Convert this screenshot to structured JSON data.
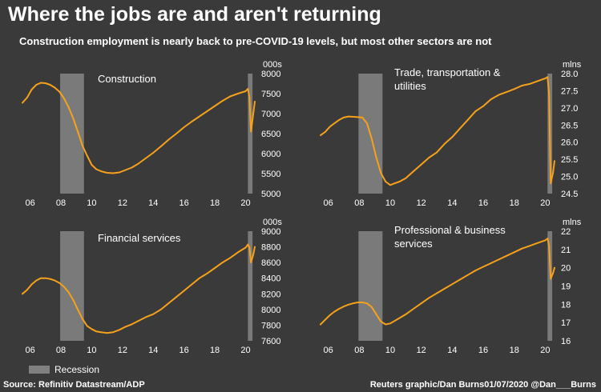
{
  "title": "Where the jobs are and aren't returning",
  "subtitle": "Construction employment is nearly back to pre-COVID-19 levels, but most other sectors are not",
  "legend_label": "Recession",
  "source": "Source: Refinitiv Datastream/ADP",
  "credit": "Reuters graphic/Dan Burns01/07/2020 @Dan___Burns",
  "colors": {
    "line": "#f5a11b",
    "recession": "#7a7a7a",
    "background": "#3a3a3a",
    "text": "#ffffff"
  },
  "chart_data": [
    {
      "type": "line",
      "title": "Construction",
      "unit_label": "000s",
      "xlim": [
        2005.5,
        2020.6
      ],
      "ylim": [
        5000,
        8000
      ],
      "x_ticks": [
        2006,
        2008,
        2010,
        2012,
        2014,
        2016,
        2018,
        2020
      ],
      "x_tick_labels": [
        "06",
        "08",
        "10",
        "12",
        "14",
        "16",
        "18",
        "20"
      ],
      "y_ticks": [
        5000,
        5500,
        6000,
        6500,
        7000,
        7500,
        8000
      ],
      "y_tick_labels": [
        "5000",
        "5500",
        "6000",
        "6500",
        "7000",
        "7500",
        "8000"
      ],
      "recession": [
        [
          2007.95,
          2009.5
        ],
        [
          2020.15,
          2020.45
        ]
      ],
      "x": [
        2005.5,
        2005.8,
        2006.1,
        2006.4,
        2006.7,
        2007.0,
        2007.3,
        2007.6,
        2007.9,
        2008.2,
        2008.5,
        2008.8,
        2009.1,
        2009.4,
        2009.7,
        2010.0,
        2010.3,
        2010.6,
        2011.0,
        2011.4,
        2011.8,
        2012.2,
        2012.6,
        2013.0,
        2013.5,
        2014.0,
        2014.5,
        2015.0,
        2015.5,
        2016.0,
        2016.5,
        2017.0,
        2017.5,
        2018.0,
        2018.5,
        2019.0,
        2019.5,
        2020.0,
        2020.15,
        2020.25,
        2020.35,
        2020.5,
        2020.6
      ],
      "y": [
        7270,
        7400,
        7600,
        7720,
        7770,
        7760,
        7720,
        7650,
        7550,
        7380,
        7160,
        6880,
        6550,
        6200,
        5950,
        5720,
        5610,
        5560,
        5520,
        5510,
        5530,
        5590,
        5650,
        5740,
        5880,
        6020,
        6180,
        6350,
        6500,
        6660,
        6800,
        6930,
        7060,
        7190,
        7320,
        7430,
        7500,
        7560,
        7620,
        7400,
        6550,
        7000,
        7300
      ]
    },
    {
      "type": "line",
      "title": "Trade, transportation & utilities",
      "unit_label": "mlns",
      "xlim": [
        2005.5,
        2020.6
      ],
      "ylim": [
        24.5,
        28.0
      ],
      "x_ticks": [
        2006,
        2008,
        2010,
        2012,
        2014,
        2016,
        2018,
        2020
      ],
      "x_tick_labels": [
        "06",
        "08",
        "10",
        "12",
        "14",
        "16",
        "18",
        "20"
      ],
      "y_ticks": [
        24.5,
        25.0,
        25.5,
        26.0,
        26.5,
        27.0,
        27.5,
        28.0
      ],
      "y_tick_labels": [
        "24.5",
        "25.0",
        "25.5",
        "26.0",
        "26.5",
        "27.0",
        "27.5",
        "28.0"
      ],
      "recession": [
        [
          2007.95,
          2009.5
        ],
        [
          2020.15,
          2020.45
        ]
      ],
      "x": [
        2005.5,
        2005.8,
        2006.1,
        2006.4,
        2006.7,
        2007.0,
        2007.3,
        2007.6,
        2007.9,
        2008.2,
        2008.5,
        2008.8,
        2009.1,
        2009.4,
        2009.7,
        2010.0,
        2010.3,
        2010.6,
        2011.0,
        2011.5,
        2012.0,
        2012.5,
        2013.0,
        2013.5,
        2014.0,
        2014.5,
        2015.0,
        2015.5,
        2016.0,
        2016.5,
        2017.0,
        2017.5,
        2018.0,
        2018.5,
        2019.0,
        2019.5,
        2020.0,
        2020.15,
        2020.25,
        2020.35,
        2020.5,
        2020.6
      ],
      "y": [
        26.2,
        26.3,
        26.45,
        26.55,
        26.65,
        26.72,
        26.75,
        26.74,
        26.73,
        26.72,
        26.55,
        26.1,
        25.55,
        25.1,
        24.85,
        24.75,
        24.8,
        24.85,
        24.95,
        25.15,
        25.35,
        25.55,
        25.7,
        25.95,
        26.15,
        26.4,
        26.65,
        26.9,
        27.05,
        27.25,
        27.38,
        27.46,
        27.55,
        27.65,
        27.7,
        27.78,
        27.86,
        27.9,
        27.4,
        24.8,
        25.1,
        25.45
      ]
    },
    {
      "type": "line",
      "title": "Financial services",
      "unit_label": "000s",
      "xlim": [
        2005.5,
        2020.6
      ],
      "ylim": [
        7600,
        9000
      ],
      "x_ticks": [
        2006,
        2008,
        2010,
        2012,
        2014,
        2016,
        2018,
        2020
      ],
      "x_tick_labels": [
        "06",
        "08",
        "10",
        "12",
        "14",
        "16",
        "18",
        "20"
      ],
      "y_ticks": [
        7600,
        7800,
        8000,
        8200,
        8400,
        8600,
        8800,
        9000
      ],
      "y_tick_labels": [
        "7600",
        "7800",
        "8000",
        "8200",
        "8400",
        "8600",
        "8800",
        "9000"
      ],
      "recession": [
        [
          2007.95,
          2009.5
        ],
        [
          2020.15,
          2020.45
        ]
      ],
      "x": [
        2005.5,
        2005.8,
        2006.1,
        2006.4,
        2006.7,
        2007.0,
        2007.3,
        2007.6,
        2007.9,
        2008.2,
        2008.5,
        2008.8,
        2009.1,
        2009.4,
        2009.7,
        2010.0,
        2010.3,
        2010.6,
        2011.0,
        2011.4,
        2011.8,
        2012.2,
        2012.6,
        2013.0,
        2013.5,
        2014.0,
        2014.5,
        2015.0,
        2015.5,
        2016.0,
        2016.5,
        2017.0,
        2017.5,
        2018.0,
        2018.5,
        2019.0,
        2019.5,
        2020.0,
        2020.15,
        2020.25,
        2020.35,
        2020.5,
        2020.6
      ],
      "y": [
        8200,
        8250,
        8320,
        8370,
        8400,
        8400,
        8390,
        8370,
        8340,
        8290,
        8220,
        8120,
        8000,
        7880,
        7790,
        7750,
        7720,
        7710,
        7700,
        7710,
        7740,
        7780,
        7810,
        7850,
        7900,
        7940,
        8000,
        8080,
        8160,
        8240,
        8320,
        8400,
        8460,
        8530,
        8600,
        8660,
        8730,
        8790,
        8830,
        8790,
        8600,
        8700,
        8800
      ]
    },
    {
      "type": "line",
      "title": "Professional & business services",
      "unit_label": "mlns",
      "xlim": [
        2005.5,
        2020.6
      ],
      "ylim": [
        16,
        22
      ],
      "x_ticks": [
        2006,
        2008,
        2010,
        2012,
        2014,
        2016,
        2018,
        2020
      ],
      "x_tick_labels": [
        "06",
        "08",
        "10",
        "12",
        "14",
        "16",
        "18",
        "20"
      ],
      "y_ticks": [
        16,
        17,
        18,
        19,
        20,
        21,
        22
      ],
      "y_tick_labels": [
        "16",
        "17",
        "18",
        "19",
        "20",
        "21",
        "22"
      ],
      "recession": [
        [
          2007.95,
          2009.5
        ],
        [
          2020.15,
          2020.45
        ]
      ],
      "x": [
        2005.5,
        2005.8,
        2006.1,
        2006.4,
        2006.7,
        2007.0,
        2007.3,
        2007.6,
        2007.9,
        2008.2,
        2008.5,
        2008.8,
        2009.1,
        2009.4,
        2009.7,
        2010.0,
        2010.5,
        2011.0,
        2011.5,
        2012.0,
        2012.5,
        2013.0,
        2013.5,
        2014.0,
        2014.5,
        2015.0,
        2015.5,
        2016.0,
        2016.5,
        2017.0,
        2017.5,
        2018.0,
        2018.5,
        2019.0,
        2019.5,
        2020.0,
        2020.15,
        2020.25,
        2020.35,
        2020.5,
        2020.6
      ],
      "y": [
        16.9,
        17.15,
        17.4,
        17.6,
        17.75,
        17.88,
        17.98,
        18.05,
        18.1,
        18.1,
        18.05,
        17.85,
        17.45,
        17.05,
        16.9,
        16.95,
        17.2,
        17.45,
        17.75,
        18.05,
        18.35,
        18.6,
        18.85,
        19.1,
        19.35,
        19.6,
        19.85,
        20.05,
        20.25,
        20.45,
        20.65,
        20.85,
        21.05,
        21.2,
        21.35,
        21.5,
        21.6,
        21.2,
        19.4,
        19.7,
        20.0
      ]
    }
  ]
}
